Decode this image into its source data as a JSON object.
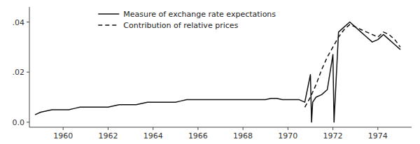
{
  "chart_data": {
    "type": "line",
    "xlim": [
      1958.5,
      1975.5
    ],
    "ylim": [
      -0.002,
      0.046
    ],
    "xticks": [
      1960,
      1962,
      1964,
      1966,
      1968,
      1970,
      1972,
      1974
    ],
    "yticks": [
      {
        "value": 0.0,
        "label": "0.0"
      },
      {
        "value": 0.02,
        "label": ".02"
      },
      {
        "value": 0.04,
        "label": ".04"
      }
    ],
    "grid": false,
    "legend": "upper left",
    "series": [
      {
        "name": "Measure of exchange rate expectations",
        "color": "#111111",
        "line_style": "solid",
        "x": [
          1958.75,
          1959.0,
          1959.25,
          1959.5,
          1959.75,
          1960.0,
          1960.25,
          1960.5,
          1960.75,
          1961.0,
          1961.25,
          1961.5,
          1961.75,
          1962.0,
          1962.25,
          1962.5,
          1962.75,
          1963.0,
          1963.25,
          1963.5,
          1963.75,
          1964.0,
          1964.25,
          1964.5,
          1964.75,
          1965.0,
          1965.25,
          1965.5,
          1965.75,
          1966.0,
          1966.25,
          1966.5,
          1966.75,
          1967.0,
          1967.25,
          1967.5,
          1967.75,
          1968.0,
          1968.25,
          1968.5,
          1968.75,
          1969.0,
          1969.25,
          1969.5,
          1969.75,
          1970.0,
          1970.25,
          1970.5,
          1970.75,
          1971.0,
          1971.05,
          1971.1,
          1971.25,
          1971.5,
          1971.75,
          1972.0,
          1972.05,
          1972.1,
          1972.25,
          1972.5,
          1972.75,
          1973.0,
          1973.25,
          1973.5,
          1973.75,
          1974.0,
          1974.25,
          1974.5,
          1974.75,
          1975.0
        ],
        "values": [
          0.003,
          0.004,
          0.0045,
          0.005,
          0.005,
          0.005,
          0.005,
          0.0055,
          0.006,
          0.006,
          0.006,
          0.006,
          0.006,
          0.006,
          0.0065,
          0.007,
          0.007,
          0.007,
          0.007,
          0.0075,
          0.008,
          0.008,
          0.008,
          0.008,
          0.008,
          0.008,
          0.0085,
          0.009,
          0.009,
          0.009,
          0.009,
          0.009,
          0.009,
          0.009,
          0.009,
          0.009,
          0.009,
          0.009,
          0.009,
          0.009,
          0.009,
          0.009,
          0.0095,
          0.0095,
          0.009,
          0.009,
          0.009,
          0.009,
          0.008,
          0.019,
          0.0,
          0.008,
          0.01,
          0.011,
          0.013,
          0.027,
          0.0,
          0.009,
          0.036,
          0.038,
          0.04,
          0.038,
          0.036,
          0.034,
          0.032,
          0.033,
          0.035,
          0.033,
          0.031,
          0.029
        ]
      },
      {
        "name": "Contribution of relative prices",
        "color": "#111111",
        "line_style": "dashed",
        "x": [
          1970.75,
          1971.0,
          1971.25,
          1971.5,
          1971.75,
          1972.0,
          1972.25,
          1972.5,
          1972.75,
          1973.0,
          1973.25,
          1973.5,
          1973.75,
          1974.0,
          1974.25,
          1974.5,
          1974.75,
          1975.0
        ],
        "values": [
          0.006,
          0.01,
          0.015,
          0.021,
          0.026,
          0.03,
          0.034,
          0.037,
          0.039,
          0.038,
          0.037,
          0.036,
          0.035,
          0.034,
          0.036,
          0.035,
          0.033,
          0.03
        ]
      }
    ]
  }
}
